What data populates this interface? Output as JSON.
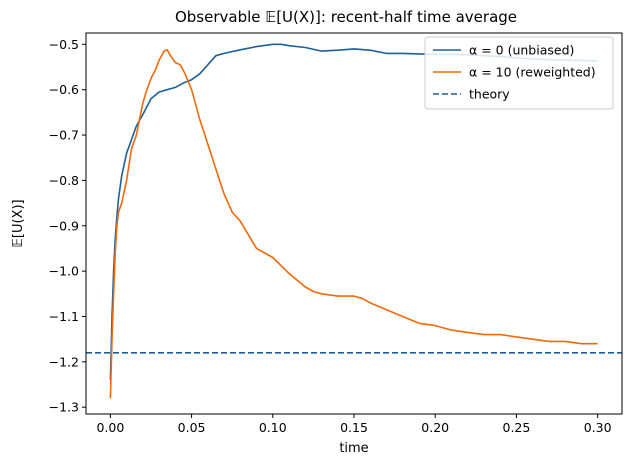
{
  "chart_data": {
    "type": "line",
    "title": "Observable 𝔼[U(X)]: recent-half time average",
    "xlabel": "time",
    "ylabel": "𝔼[U(X)]",
    "xlim": [
      -0.015,
      0.315
    ],
    "ylim": [
      -1.315,
      -0.475
    ],
    "xticks": [
      0.0,
      0.05,
      0.1,
      0.15,
      0.2,
      0.25,
      0.3
    ],
    "xtick_labels": [
      "0.00",
      "0.05",
      "0.10",
      "0.15",
      "0.20",
      "0.25",
      "0.30"
    ],
    "yticks": [
      -1.3,
      -1.2,
      -1.1,
      -1.0,
      -0.9,
      -0.8,
      -0.7,
      -0.6,
      -0.5
    ],
    "ytick_labels": [
      "−1.3",
      "−1.2",
      "−1.1",
      "−1.0",
      "−0.9",
      "−0.8",
      "−0.7",
      "−0.6",
      "−0.5"
    ],
    "grid": false,
    "legend_position": "top-right",
    "series": [
      {
        "name": "α = 0 (unbiased)",
        "color": "#1f5f99",
        "style": "solid",
        "x": [
          0.0,
          0.001,
          0.002,
          0.003,
          0.004,
          0.005,
          0.007,
          0.01,
          0.013,
          0.016,
          0.02,
          0.025,
          0.03,
          0.035,
          0.04,
          0.045,
          0.05,
          0.055,
          0.06,
          0.065,
          0.07,
          0.08,
          0.09,
          0.1,
          0.105,
          0.11,
          0.12,
          0.13,
          0.14,
          0.15,
          0.16,
          0.17,
          0.18,
          0.19,
          0.2,
          0.21,
          0.22,
          0.23,
          0.24,
          0.25,
          0.26,
          0.27,
          0.28,
          0.29,
          0.3
        ],
        "y": [
          -1.24,
          -1.1,
          -1.0,
          -0.93,
          -0.88,
          -0.84,
          -0.79,
          -0.74,
          -0.71,
          -0.68,
          -0.655,
          -0.62,
          -0.605,
          -0.6,
          -0.595,
          -0.585,
          -0.578,
          -0.565,
          -0.545,
          -0.525,
          -0.52,
          -0.512,
          -0.505,
          -0.5,
          -0.5,
          -0.503,
          -0.507,
          -0.515,
          -0.513,
          -0.51,
          -0.513,
          -0.52,
          -0.52,
          -0.521,
          -0.522,
          -0.522,
          -0.523,
          -0.525,
          -0.527,
          -0.53,
          -0.532,
          -0.534,
          -0.535,
          -0.535,
          -0.537
        ]
      },
      {
        "name": "α = 10 (reweighted)",
        "color": "#f06a0a",
        "style": "solid",
        "x": [
          0.0,
          0.001,
          0.002,
          0.003,
          0.004,
          0.005,
          0.007,
          0.01,
          0.013,
          0.016,
          0.02,
          0.022,
          0.025,
          0.028,
          0.03,
          0.033,
          0.035,
          0.037,
          0.04,
          0.043,
          0.046,
          0.05,
          0.055,
          0.06,
          0.065,
          0.07,
          0.075,
          0.08,
          0.085,
          0.09,
          0.095,
          0.1,
          0.11,
          0.12,
          0.125,
          0.13,
          0.14,
          0.15,
          0.155,
          0.16,
          0.17,
          0.18,
          0.19,
          0.2,
          0.21,
          0.22,
          0.23,
          0.24,
          0.25,
          0.26,
          0.27,
          0.28,
          0.29,
          0.3
        ],
        "y": [
          -1.28,
          -1.15,
          -1.05,
          -0.96,
          -0.9,
          -0.87,
          -0.85,
          -0.8,
          -0.73,
          -0.7,
          -0.63,
          -0.605,
          -0.575,
          -0.555,
          -0.535,
          -0.515,
          -0.512,
          -0.525,
          -0.54,
          -0.545,
          -0.565,
          -0.6,
          -0.665,
          -0.72,
          -0.775,
          -0.83,
          -0.87,
          -0.89,
          -0.92,
          -0.95,
          -0.96,
          -0.97,
          -1.005,
          -1.035,
          -1.045,
          -1.05,
          -1.055,
          -1.055,
          -1.06,
          -1.07,
          -1.085,
          -1.1,
          -1.115,
          -1.12,
          -1.13,
          -1.135,
          -1.14,
          -1.14,
          -1.145,
          -1.15,
          -1.155,
          -1.155,
          -1.16,
          -1.16
        ]
      },
      {
        "name": "theory",
        "color": "#1f5f99",
        "style": "dashed",
        "hline": -1.18
      }
    ]
  }
}
